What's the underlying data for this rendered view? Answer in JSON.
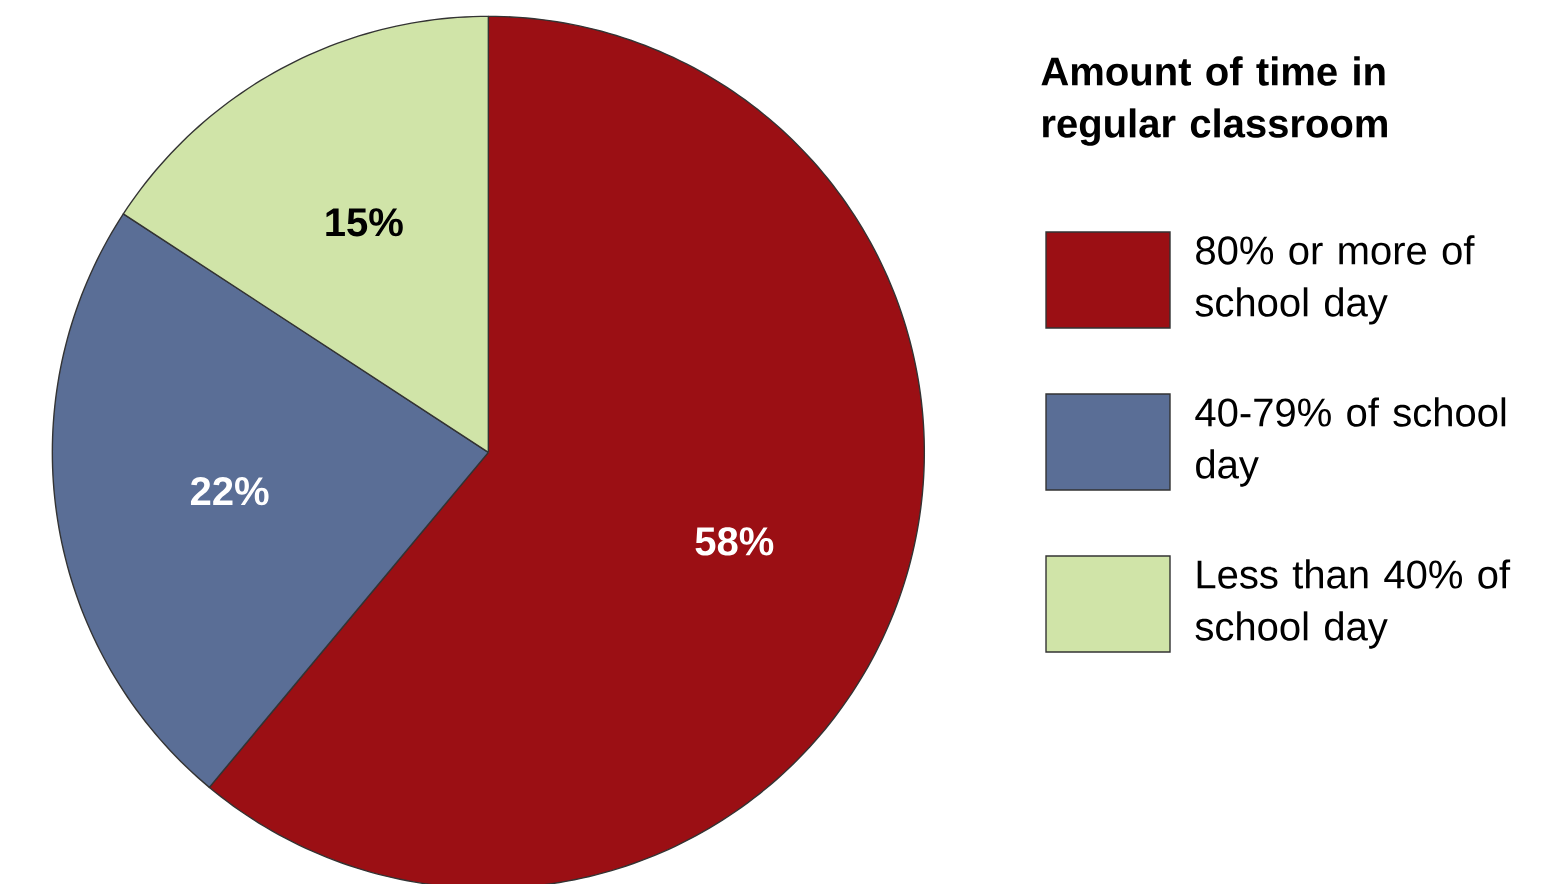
{
  "chart_data": {
    "type": "pie",
    "legend_title": "Amount of time in regular classroom",
    "categories": [
      "80% or more of school day",
      "40-79% of school day",
      "Less than 40% of school day"
    ],
    "values": [
      58,
      22,
      15
    ],
    "colors": [
      "#9b0f14",
      "#5a6e96",
      "#d0e4a8"
    ],
    "value_labels": [
      "58%",
      "22%",
      "15%"
    ],
    "legend": "right"
  }
}
